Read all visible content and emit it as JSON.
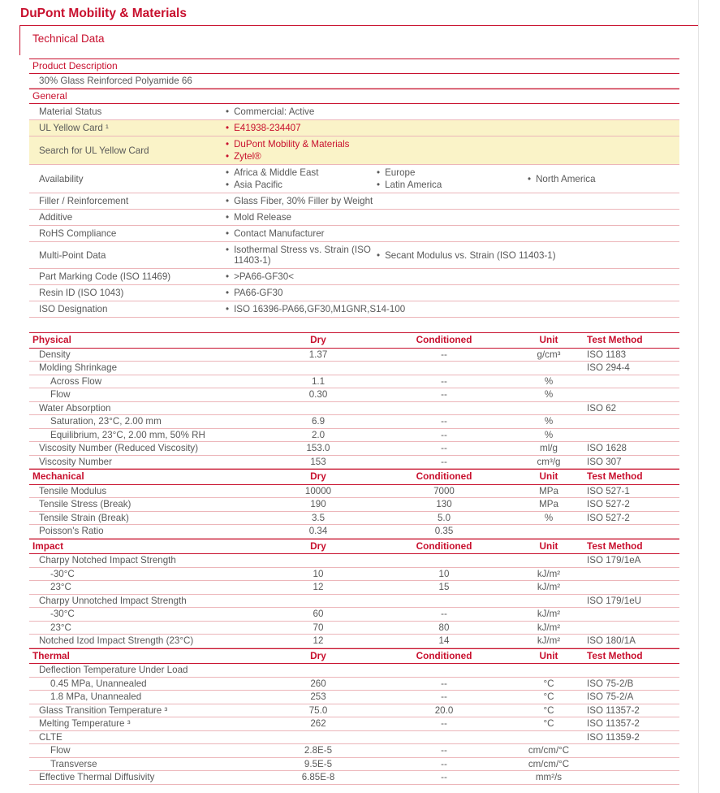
{
  "colors": {
    "accent": "#c8102e",
    "text": "#595959",
    "row_line": "#ecb6ba",
    "highlight_bg": "#faf3c8"
  },
  "glyphs": {
    "bullet": "•"
  },
  "header": {
    "brand": "DuPont Mobility & Materials",
    "subtitle": "Technical Data"
  },
  "info_sections": [
    {
      "title": "Product Description",
      "rows": [
        {
          "text": "30% Glass Reinforced Polyamide 66"
        }
      ]
    },
    {
      "title": "General",
      "rows": [
        {
          "label": "Material Status",
          "columns": [
            [
              "Commercial: Active"
            ]
          ]
        },
        {
          "label": "UL Yellow Card ¹",
          "highlight": true,
          "link": true,
          "columns": [
            [
              "E41938-234407"
            ]
          ]
        },
        {
          "label": "Search for UL Yellow Card",
          "highlight": true,
          "link": true,
          "columns": [
            [
              "DuPont Mobility & Materials",
              "Zytel®"
            ]
          ]
        },
        {
          "label": "Availability",
          "columns": [
            [
              "Africa & Middle East",
              "Asia Pacific"
            ],
            [
              "Europe",
              "Latin America"
            ],
            [
              "North America"
            ]
          ]
        },
        {
          "label": "Filler / Reinforcement",
          "columns": [
            [
              "Glass Fiber, 30% Filler by Weight"
            ]
          ]
        },
        {
          "label": "Additive",
          "columns": [
            [
              "Mold Release"
            ]
          ]
        },
        {
          "label": "RoHS Compliance",
          "columns": [
            [
              "Contact Manufacturer"
            ]
          ]
        },
        {
          "label": "Multi-Point Data",
          "columns": [
            [
              "Isothermal Stress vs. Strain (ISO 11403-1)"
            ],
            [
              "Secant Modulus vs. Strain (ISO 11403-1)"
            ]
          ]
        },
        {
          "label": "Part Marking Code (ISO 11469)",
          "columns": [
            [
              ">PA66-GF30<"
            ]
          ]
        },
        {
          "label": "Resin ID (ISO 1043)",
          "columns": [
            [
              "PA66-GF30"
            ]
          ]
        },
        {
          "label": "ISO Designation",
          "columns": [
            [
              "ISO 16396-PA66,GF30,M1GNR,S14-100"
            ]
          ]
        }
      ]
    }
  ],
  "properties_table": {
    "columns": [
      "Dry",
      "Conditioned",
      "Unit",
      "Test Method"
    ],
    "sections": [
      {
        "title": "Physical",
        "rows": [
          {
            "name": "Density",
            "dry": "1.37",
            "cond": "--",
            "unit": "g/cm³",
            "method": "ISO 1183"
          },
          {
            "name": "Molding Shrinkage",
            "method": "ISO 294-4"
          },
          {
            "name": "Across Flow",
            "indent": true,
            "dry": "1.1",
            "cond": "--",
            "unit": "%"
          },
          {
            "name": "Flow",
            "indent": true,
            "dry": "0.30",
            "cond": "--",
            "unit": "%"
          },
          {
            "name": "Water Absorption",
            "method": "ISO 62"
          },
          {
            "name": "Saturation, 23°C, 2.00 mm",
            "indent": true,
            "dry": "6.9",
            "cond": "--",
            "unit": "%"
          },
          {
            "name": "Equilibrium, 23°C, 2.00 mm, 50% RH",
            "indent": true,
            "dry": "2.0",
            "cond": "--",
            "unit": "%"
          },
          {
            "name": "Viscosity Number (Reduced Viscosity)",
            "dry": "153.0",
            "cond": "--",
            "unit": "ml/g",
            "method": "ISO 1628"
          },
          {
            "name": "Viscosity Number",
            "dry": "153",
            "cond": "--",
            "unit": "cm³/g",
            "method": "ISO 307"
          }
        ]
      },
      {
        "title": "Mechanical",
        "rows": [
          {
            "name": "Tensile Modulus",
            "dry": "10000",
            "cond": "7000",
            "unit": "MPa",
            "method": "ISO 527-1"
          },
          {
            "name": "Tensile Stress (Break)",
            "dry": "190",
            "cond": "130",
            "unit": "MPa",
            "method": "ISO 527-2"
          },
          {
            "name": "Tensile Strain (Break)",
            "dry": "3.5",
            "cond": "5.0",
            "unit": "%",
            "method": "ISO 527-2"
          },
          {
            "name": "Poisson's Ratio",
            "dry": "0.34",
            "cond": "0.35"
          }
        ]
      },
      {
        "title": "Impact",
        "rows": [
          {
            "name": "Charpy Notched Impact Strength",
            "method": "ISO 179/1eA"
          },
          {
            "name": "-30°C",
            "indent": true,
            "dry": "10",
            "cond": "10",
            "unit": "kJ/m²"
          },
          {
            "name": "23°C",
            "indent": true,
            "dry": "12",
            "cond": "15",
            "unit": "kJ/m²"
          },
          {
            "name": "Charpy Unnotched Impact Strength",
            "method": "ISO 179/1eU"
          },
          {
            "name": "-30°C",
            "indent": true,
            "dry": "60",
            "cond": "--",
            "unit": "kJ/m²"
          },
          {
            "name": "23°C",
            "indent": true,
            "dry": "70",
            "cond": "80",
            "unit": "kJ/m²"
          },
          {
            "name": "Notched Izod Impact Strength (23°C)",
            "dry": "12",
            "cond": "14",
            "unit": "kJ/m²",
            "method": "ISO 180/1A"
          }
        ]
      },
      {
        "title": "Thermal",
        "rows": [
          {
            "name": "Deflection Temperature Under Load"
          },
          {
            "name": "0.45 MPa, Unannealed",
            "indent": true,
            "dry": "260",
            "cond": "--",
            "unit": "°C",
            "method": "ISO 75-2/B"
          },
          {
            "name": "1.8 MPa, Unannealed",
            "indent": true,
            "dry": "253",
            "cond": "--",
            "unit": "°C",
            "method": "ISO 75-2/A"
          },
          {
            "name": "Glass Transition Temperature ³",
            "dry": "75.0",
            "cond": "20.0",
            "unit": "°C",
            "method": "ISO 11357-2"
          },
          {
            "name": "Melting Temperature ³",
            "dry": "262",
            "cond": "--",
            "unit": "°C",
            "method": "ISO 11357-2"
          },
          {
            "name": "CLTE",
            "method": "ISO 11359-2"
          },
          {
            "name": "Flow",
            "indent": true,
            "dry": "2.8E-5",
            "cond": "--",
            "unit": "cm/cm/°C"
          },
          {
            "name": "Transverse",
            "indent": true,
            "dry": "9.5E-5",
            "cond": "--",
            "unit": "cm/cm/°C"
          },
          {
            "name": "Effective Thermal Diffusivity",
            "dry": "6.85E-8",
            "cond": "--",
            "unit": "mm²/s"
          }
        ]
      }
    ]
  }
}
